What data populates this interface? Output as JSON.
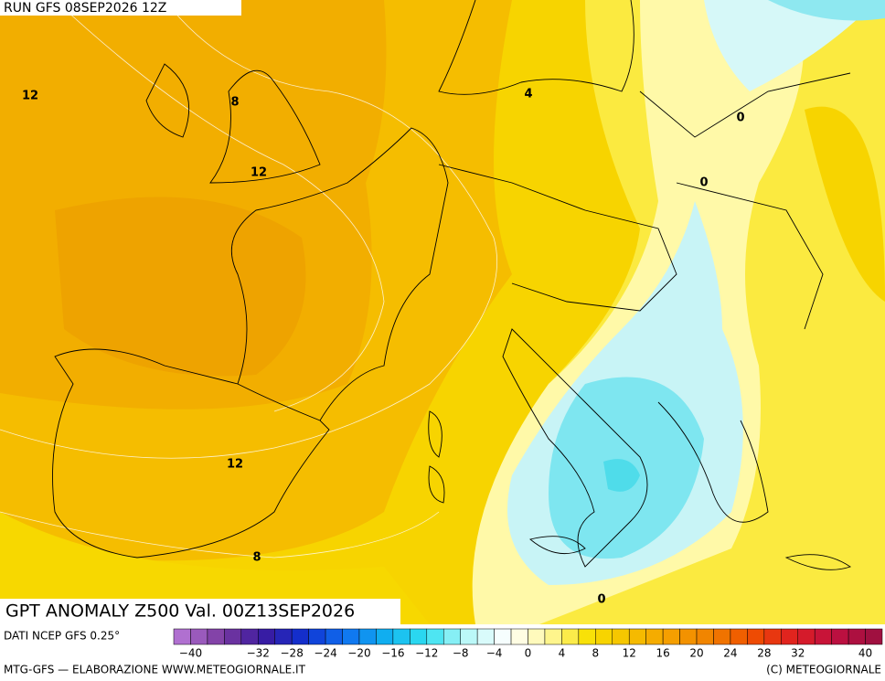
{
  "header": {
    "run": "RUN GFS 08SEP2026 12Z"
  },
  "map": {
    "title": "GPT ANOMALY Z500 Val. 00Z13SEP2026",
    "contour_labels": [
      "12",
      "8",
      "4",
      "0",
      "12",
      "0",
      "12",
      "8",
      "0"
    ]
  },
  "legend": {
    "source": "DATI NCEP GFS 0.25°",
    "ticks": [
      "−40",
      "−32",
      "−28",
      "−24",
      "−20",
      "−16",
      "−12",
      "−8",
      "−4",
      "0",
      "4",
      "8",
      "12",
      "16",
      "20",
      "24",
      "28",
      "32",
      "40"
    ]
  },
  "footer": {
    "credit": "MTG-GFS — ELABORAZIONE WWW.METEOGIORNALE.IT",
    "copyright": "(C) METEOGIORNALE"
  }
}
